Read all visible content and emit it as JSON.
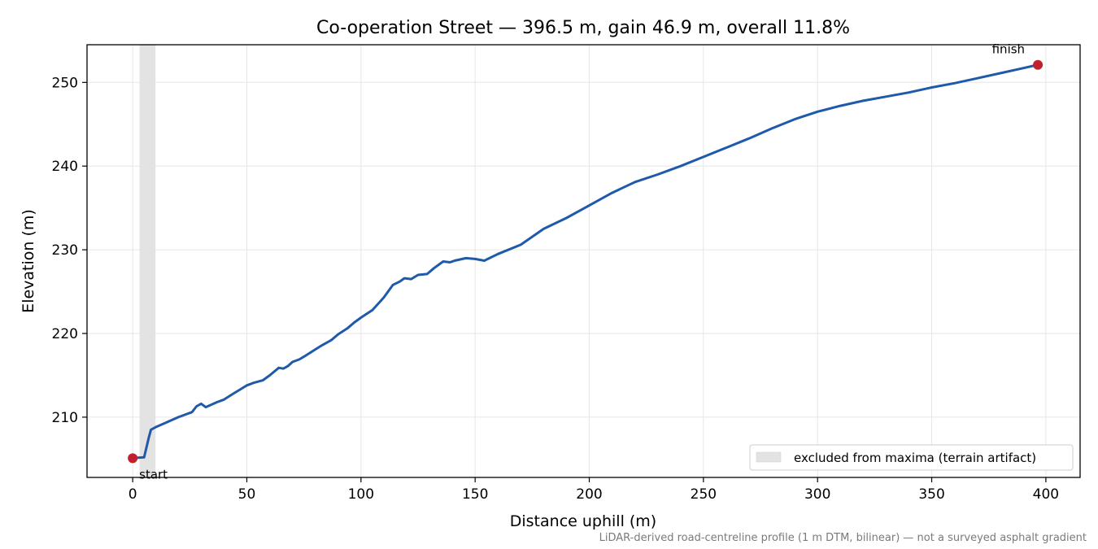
{
  "chart_data": {
    "type": "line",
    "title": "Co-operation Street — 396.5 m, gain 46.9 m, overall 11.8%",
    "xlabel": "Distance uphill (m)",
    "ylabel": "Elevation (m)",
    "xlim": [
      -20,
      415
    ],
    "ylim": [
      202.8,
      254.5
    ],
    "xticks": [
      0,
      50,
      100,
      150,
      200,
      250,
      300,
      350,
      400
    ],
    "yticks": [
      210,
      220,
      230,
      240,
      250
    ],
    "grid": true,
    "legend_position": "lower-right",
    "shaded_region": {
      "x_start": 3,
      "x_end": 10,
      "label": "excluded from maxima (terrain artifact)",
      "color": "#e3e3e3"
    },
    "series": [
      {
        "color": "#1f5aaa",
        "x": [
          0,
          5,
          7,
          8,
          10,
          15,
          20,
          26,
          28,
          30,
          32,
          37,
          40,
          44,
          47,
          50,
          53,
          57,
          60,
          64,
          66,
          68,
          70,
          73,
          76,
          80,
          83,
          87,
          90,
          94,
          97,
          100,
          105,
          110,
          114,
          117,
          119,
          122,
          125,
          129,
          132,
          136,
          139,
          141,
          146,
          150,
          154,
          160,
          170,
          180,
          190,
          200,
          210,
          220,
          230,
          240,
          250,
          260,
          270,
          280,
          290,
          300,
          310,
          320,
          330,
          340,
          350,
          360,
          370,
          380,
          390,
          396.5
        ],
        "y": [
          205.1,
          205.2,
          207.5,
          208.5,
          208.8,
          209.4,
          210.0,
          210.6,
          211.3,
          211.6,
          211.2,
          211.8,
          212.1,
          212.8,
          213.3,
          213.8,
          214.1,
          214.4,
          215.0,
          215.9,
          215.8,
          216.1,
          216.6,
          216.9,
          217.4,
          218.1,
          218.6,
          219.2,
          219.9,
          220.6,
          221.3,
          221.9,
          222.8,
          224.3,
          225.8,
          226.2,
          226.6,
          226.5,
          227.0,
          227.1,
          227.8,
          228.6,
          228.5,
          228.7,
          229.0,
          228.9,
          228.7,
          229.5,
          230.6,
          232.5,
          233.8,
          235.3,
          236.8,
          238.1,
          239.0,
          240.0,
          241.1,
          242.2,
          243.3,
          244.5,
          245.6,
          246.5,
          247.2,
          247.8,
          248.3,
          248.8,
          249.4,
          249.9,
          250.5,
          251.1,
          251.7,
          252.1
        ]
      }
    ],
    "markers": [
      {
        "x": 0,
        "y": 205.1,
        "label": "start",
        "color": "#c1202f"
      },
      {
        "x": 396.5,
        "y": 252.1,
        "label": "finish",
        "color": "#c1202f"
      }
    ],
    "footnote": "LiDAR-derived road-centreline profile (1 m DTM, bilinear) — not a surveyed asphalt gradient"
  }
}
